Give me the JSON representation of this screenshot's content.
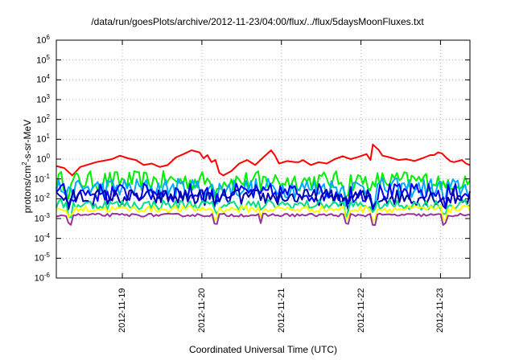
{
  "chart_data": {
    "type": "line",
    "title": "/data/run/goesPlots/archive/2012-11-23/04:00/flux/../flux/5daysMoonFluxes.txt",
    "xlabel": "Coordinated Universal Time (UTC)",
    "ylabel_main": "protons/cm",
    "ylabel_sup": "2",
    "ylabel_tail": "-s-sr-MeV",
    "y_scale": "log",
    "ylim": [
      1e-06,
      1000000.0
    ],
    "y_ticks": [
      {
        "base": "10",
        "exp": "-6"
      },
      {
        "base": "10",
        "exp": "-5"
      },
      {
        "base": "10",
        "exp": "-4"
      },
      {
        "base": "10",
        "exp": "-3"
      },
      {
        "base": "10",
        "exp": "-2"
      },
      {
        "base": "10",
        "exp": "-1"
      },
      {
        "base": "10",
        "exp": "0"
      },
      {
        "base": "10",
        "exp": "1"
      },
      {
        "base": "10",
        "exp": "2"
      },
      {
        "base": "10",
        "exp": "3"
      },
      {
        "base": "10",
        "exp": "4"
      },
      {
        "base": "10",
        "exp": "5"
      },
      {
        "base": "10",
        "exp": "6"
      }
    ],
    "x_range_days": [
      "2012-11-18T04:00",
      "2012-11-23T04:00"
    ],
    "x_ticks": [
      "2012-11-19",
      "2012-11-20",
      "2012-11-21",
      "2012-11-22",
      "2012-11-23"
    ],
    "grid": true,
    "legend": "none",
    "series": [
      {
        "color": "#ff0000",
        "level": 0.8,
        "points": [
          [
            0.0,
            0.45
          ],
          [
            0.1,
            0.35
          ],
          [
            0.2,
            0.15
          ],
          [
            0.3,
            0.4
          ],
          [
            0.5,
            0.7
          ],
          [
            0.7,
            1.0
          ],
          [
            0.8,
            1.5
          ],
          [
            0.9,
            1.1
          ],
          [
            1.0,
            0.9
          ],
          [
            1.1,
            0.5
          ],
          [
            1.2,
            0.6
          ],
          [
            1.3,
            0.4
          ],
          [
            1.4,
            0.5
          ],
          [
            1.5,
            1.2
          ],
          [
            1.6,
            1.8
          ],
          [
            1.7,
            2.8
          ],
          [
            1.8,
            2.2
          ],
          [
            1.85,
            1.1
          ],
          [
            1.9,
            1.6
          ],
          [
            1.95,
            0.7
          ],
          [
            2.0,
            0.9
          ],
          [
            2.05,
            0.2
          ],
          [
            2.1,
            0.15
          ],
          [
            2.2,
            0.25
          ],
          [
            2.3,
            0.6
          ],
          [
            2.4,
            0.9
          ],
          [
            2.5,
            0.5
          ],
          [
            2.6,
            1.2
          ],
          [
            2.7,
            2.8
          ],
          [
            2.75,
            1.5
          ],
          [
            2.8,
            0.6
          ],
          [
            2.9,
            0.8
          ],
          [
            3.0,
            0.7
          ],
          [
            3.05,
            0.7
          ],
          [
            3.1,
            0.9
          ],
          [
            3.2,
            0.5
          ],
          [
            3.3,
            0.7
          ],
          [
            3.4,
            0.6
          ],
          [
            3.5,
            1.0
          ],
          [
            3.6,
            1.4
          ],
          [
            3.7,
            1.0
          ],
          [
            3.8,
            1.3
          ],
          [
            3.9,
            1.8
          ],
          [
            3.95,
            0.9
          ],
          [
            3.98,
            5.5
          ],
          [
            4.0,
            4.5
          ],
          [
            4.05,
            3.0
          ],
          [
            4.1,
            1.5
          ],
          [
            4.2,
            1.2
          ],
          [
            4.3,
            0.9
          ],
          [
            4.4,
            1.0
          ],
          [
            4.5,
            0.8
          ],
          [
            4.6,
            1.1
          ],
          [
            4.7,
            1.6
          ],
          [
            4.75,
            1.6
          ],
          [
            4.8,
            2.2
          ],
          [
            4.85,
            1.9
          ],
          [
            4.9,
            1.2
          ],
          [
            4.95,
            0.8
          ],
          [
            5.0,
            0.7
          ],
          [
            5.1,
            0.9
          ],
          [
            5.15,
            0.6
          ],
          [
            5.2,
            0.5
          ]
        ]
      },
      {
        "color": "#00ee00",
        "level": 0.08,
        "amp": 3.2
      },
      {
        "color": "#00aaff",
        "level": 0.035,
        "amp": 3.2
      },
      {
        "color": "#0000ff",
        "level": 0.02,
        "amp": 3.0
      },
      {
        "color": "#0000aa",
        "level": 0.012,
        "amp": 2.6
      },
      {
        "color": "#00dd88",
        "level": 0.005,
        "amp": 1.8
      },
      {
        "color": "#ffff00",
        "level": 0.003,
        "amp": 1.5
      },
      {
        "color": "#993399",
        "level": 0.0015,
        "amp": 1.2
      }
    ]
  }
}
